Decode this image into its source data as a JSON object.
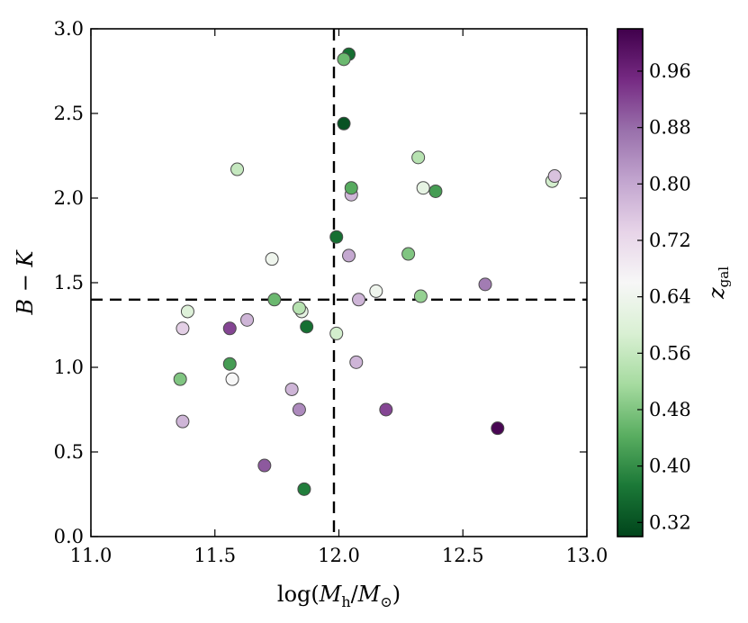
{
  "chart_data": {
    "type": "scatter",
    "title": "",
    "xlabel": "log(M_h/M_⊙)",
    "xlabel_parts": {
      "pre": "log(",
      "m1": "M",
      "sub1": "h",
      "slash": "/",
      "m2": "M",
      "sub2": "⊙",
      "post": ")"
    },
    "ylabel": "B − K",
    "xlim": [
      11.0,
      13.0
    ],
    "ylim": [
      0.0,
      3.0
    ],
    "xticks": [
      11.0,
      11.5,
      12.0,
      12.5,
      13.0
    ],
    "xtick_labels": [
      "11.0",
      "11.5",
      "12.0",
      "12.5",
      "13.0"
    ],
    "yticks": [
      0.0,
      0.5,
      1.0,
      1.5,
      2.0,
      2.5,
      3.0
    ],
    "ytick_labels": [
      "0.0",
      "0.5",
      "1.0",
      "1.5",
      "2.0",
      "2.5",
      "3.0"
    ],
    "grid": false,
    "reference_lines": {
      "vertical_x": 11.98,
      "horizontal_y": 1.4,
      "style": "dashed"
    },
    "colorbar": {
      "label": "z_gal",
      "label_parts": {
        "main": "z",
        "sub": "gal"
      },
      "range": [
        0.3,
        1.02
      ],
      "ticks": [
        0.32,
        0.4,
        0.48,
        0.56,
        0.64,
        0.72,
        0.8,
        0.88,
        0.96
      ],
      "tick_labels": [
        "0.32",
        "0.40",
        "0.48",
        "0.56",
        "0.64",
        "0.72",
        "0.80",
        "0.88",
        "0.96"
      ],
      "colormap": "PRGn",
      "colors": [
        "#00441b",
        "#1b7837",
        "#5aae61",
        "#a6dba0",
        "#d9f0d3",
        "#f7f7f7",
        "#e7d4e8",
        "#c2a5cf",
        "#9970ab",
        "#762a83",
        "#40004b"
      ]
    },
    "points": [
      {
        "x": 12.04,
        "y": 2.85,
        "z": 0.36
      },
      {
        "x": 12.02,
        "y": 2.82,
        "z": 0.46
      },
      {
        "x": 12.02,
        "y": 2.44,
        "z": 0.32
      },
      {
        "x": 11.59,
        "y": 2.17,
        "z": 0.56
      },
      {
        "x": 12.32,
        "y": 2.24,
        "z": 0.54
      },
      {
        "x": 12.05,
        "y": 2.02,
        "z": 0.78
      },
      {
        "x": 12.05,
        "y": 2.06,
        "z": 0.44
      },
      {
        "x": 12.34,
        "y": 2.06,
        "z": 0.62
      },
      {
        "x": 12.39,
        "y": 2.04,
        "z": 0.42
      },
      {
        "x": 12.86,
        "y": 2.1,
        "z": 0.58
      },
      {
        "x": 12.87,
        "y": 2.13,
        "z": 0.76
      },
      {
        "x": 11.99,
        "y": 1.77,
        "z": 0.36
      },
      {
        "x": 11.73,
        "y": 1.64,
        "z": 0.64
      },
      {
        "x": 12.04,
        "y": 1.66,
        "z": 0.8
      },
      {
        "x": 12.28,
        "y": 1.67,
        "z": 0.48
      },
      {
        "x": 12.59,
        "y": 1.49,
        "z": 0.86
      },
      {
        "x": 11.74,
        "y": 1.4,
        "z": 0.46
      },
      {
        "x": 12.08,
        "y": 1.4,
        "z": 0.78
      },
      {
        "x": 12.15,
        "y": 1.45,
        "z": 0.64
      },
      {
        "x": 12.33,
        "y": 1.42,
        "z": 0.5
      },
      {
        "x": 11.39,
        "y": 1.33,
        "z": 0.6
      },
      {
        "x": 11.37,
        "y": 1.23,
        "z": 0.74
      },
      {
        "x": 11.56,
        "y": 1.23,
        "z": 0.92
      },
      {
        "x": 11.63,
        "y": 1.28,
        "z": 0.78
      },
      {
        "x": 11.85,
        "y": 1.33,
        "z": 0.62
      },
      {
        "x": 11.84,
        "y": 1.35,
        "z": 0.54
      },
      {
        "x": 11.87,
        "y": 1.24,
        "z": 0.36
      },
      {
        "x": 11.99,
        "y": 1.2,
        "z": 0.58
      },
      {
        "x": 11.56,
        "y": 1.02,
        "z": 0.42
      },
      {
        "x": 11.36,
        "y": 0.93,
        "z": 0.48
      },
      {
        "x": 11.57,
        "y": 0.93,
        "z": 0.66
      },
      {
        "x": 12.07,
        "y": 1.03,
        "z": 0.78
      },
      {
        "x": 11.81,
        "y": 0.87,
        "z": 0.78
      },
      {
        "x": 11.37,
        "y": 0.68,
        "z": 0.78
      },
      {
        "x": 11.84,
        "y": 0.75,
        "z": 0.84
      },
      {
        "x": 12.19,
        "y": 0.75,
        "z": 0.92
      },
      {
        "x": 12.64,
        "y": 0.64,
        "z": 1.01
      },
      {
        "x": 11.7,
        "y": 0.42,
        "z": 0.9
      },
      {
        "x": 11.86,
        "y": 0.28,
        "z": 0.38
      }
    ]
  }
}
